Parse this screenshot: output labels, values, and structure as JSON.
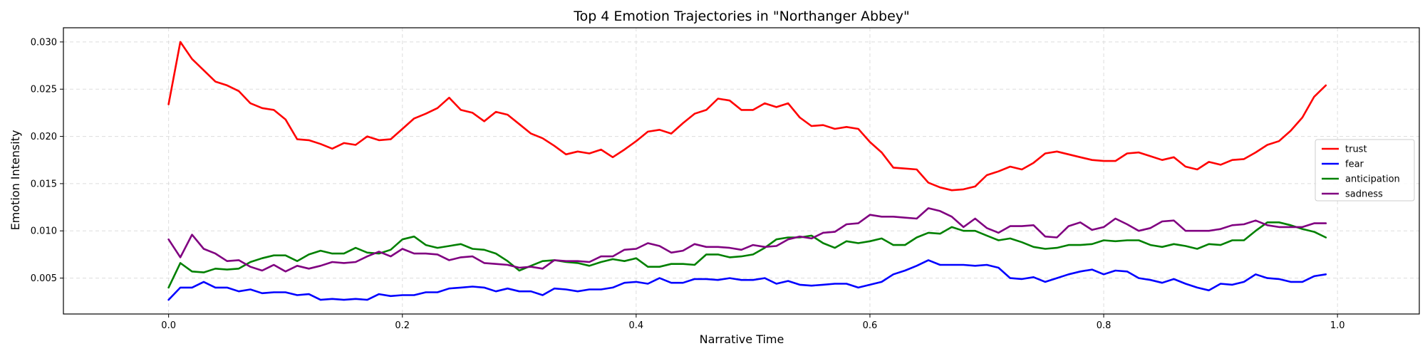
{
  "chart_data": {
    "type": "line",
    "title": "Top 4 Emotion Trajectories in \"Northanger Abbey\"",
    "xlabel": "Narrative Time",
    "ylabel": "Emotion Intensity",
    "xlim": [
      -0.09,
      1.07
    ],
    "ylim": [
      0.0012,
      0.0315
    ],
    "xticks": [
      0.0,
      0.2,
      0.4,
      0.6,
      0.8,
      1.0
    ],
    "xtick_labels": [
      "0.0",
      "0.2",
      "0.4",
      "0.6",
      "0.8",
      "1.0"
    ],
    "yticks": [
      0.005,
      0.01,
      0.015,
      0.02,
      0.025,
      0.03
    ],
    "ytick_labels": [
      "0.005",
      "0.010",
      "0.015",
      "0.020",
      "0.025",
      "0.030"
    ],
    "grid": true,
    "legend_position": "right",
    "x": [
      0.0,
      0.01,
      0.02,
      0.03,
      0.04,
      0.05,
      0.06,
      0.07,
      0.08,
      0.09,
      0.1,
      0.11,
      0.12,
      0.13,
      0.14,
      0.15,
      0.16,
      0.17,
      0.18,
      0.19,
      0.2,
      0.21,
      0.22,
      0.23,
      0.24,
      0.25,
      0.26,
      0.27,
      0.28,
      0.29,
      0.3,
      0.31,
      0.32,
      0.33,
      0.34,
      0.35,
      0.36,
      0.37,
      0.38,
      0.39,
      0.4,
      0.41,
      0.42,
      0.43,
      0.44,
      0.45,
      0.46,
      0.47,
      0.48,
      0.49,
      0.5,
      0.51,
      0.52,
      0.53,
      0.54,
      0.55,
      0.56,
      0.57,
      0.58,
      0.59,
      0.6,
      0.61,
      0.62,
      0.63,
      0.64,
      0.65,
      0.66,
      0.67,
      0.68,
      0.69,
      0.7,
      0.71,
      0.72,
      0.73,
      0.74,
      0.75,
      0.76,
      0.77,
      0.78,
      0.79,
      0.8,
      0.81,
      0.82,
      0.83,
      0.84,
      0.85,
      0.86,
      0.87,
      0.88,
      0.89,
      0.9,
      0.91,
      0.92,
      0.93,
      0.94,
      0.95,
      0.96,
      0.97,
      0.98,
      0.99
    ],
    "series": [
      {
        "name": "trust",
        "color": "#ff0000",
        "values": [
          0.0234,
          0.03,
          0.0282,
          0.027,
          0.0258,
          0.0254,
          0.0248,
          0.0235,
          0.023,
          0.0228,
          0.0218,
          0.0197,
          0.0196,
          0.0192,
          0.0187,
          0.0193,
          0.0191,
          0.02,
          0.0196,
          0.0197,
          0.0208,
          0.0219,
          0.0224,
          0.023,
          0.0241,
          0.0228,
          0.0225,
          0.0216,
          0.0226,
          0.0223,
          0.0213,
          0.0203,
          0.0198,
          0.019,
          0.0181,
          0.0184,
          0.0182,
          0.0186,
          0.0178,
          0.0186,
          0.0195,
          0.0205,
          0.0207,
          0.0203,
          0.0214,
          0.0224,
          0.0228,
          0.024,
          0.0238,
          0.0228,
          0.0228,
          0.0235,
          0.0231,
          0.0235,
          0.022,
          0.0211,
          0.0212,
          0.0208,
          0.021,
          0.0208,
          0.0194,
          0.0183,
          0.0167,
          0.0166,
          0.0165,
          0.0151,
          0.0146,
          0.0143,
          0.0144,
          0.0147,
          0.0159,
          0.0163,
          0.0168,
          0.0165,
          0.0172,
          0.0182,
          0.0184,
          0.0181,
          0.0178,
          0.0175,
          0.0174,
          0.0174,
          0.0182,
          0.0183,
          0.0179,
          0.0175,
          0.0178,
          0.0168,
          0.0165,
          0.0173,
          0.017,
          0.0175,
          0.0176,
          0.0183,
          0.0191,
          0.0195,
          0.0206,
          0.022,
          0.0242,
          0.0254
        ]
      },
      {
        "name": "fear",
        "color": "#0000ff",
        "values": [
          0.0027,
          0.004,
          0.004,
          0.0046,
          0.004,
          0.004,
          0.0036,
          0.0038,
          0.0034,
          0.0035,
          0.0035,
          0.0032,
          0.0033,
          0.0027,
          0.0028,
          0.0027,
          0.0028,
          0.0027,
          0.0033,
          0.0031,
          0.0032,
          0.0032,
          0.0035,
          0.0035,
          0.0039,
          0.004,
          0.0041,
          0.004,
          0.0036,
          0.0039,
          0.0036,
          0.0036,
          0.0032,
          0.0039,
          0.0038,
          0.0036,
          0.0038,
          0.0038,
          0.004,
          0.0045,
          0.0046,
          0.0044,
          0.005,
          0.0045,
          0.0045,
          0.0049,
          0.0049,
          0.0048,
          0.005,
          0.0048,
          0.0048,
          0.005,
          0.0044,
          0.0047,
          0.0043,
          0.0042,
          0.0043,
          0.0044,
          0.0044,
          0.004,
          0.0043,
          0.0046,
          0.0054,
          0.0058,
          0.0063,
          0.0069,
          0.0064,
          0.0064,
          0.0064,
          0.0063,
          0.0064,
          0.0061,
          0.005,
          0.0049,
          0.0051,
          0.0046,
          0.005,
          0.0054,
          0.0057,
          0.0059,
          0.0054,
          0.0058,
          0.0057,
          0.005,
          0.0048,
          0.0045,
          0.0049,
          0.0044,
          0.004,
          0.0037,
          0.0044,
          0.0043,
          0.0046,
          0.0054,
          0.005,
          0.0049,
          0.0046,
          0.0046,
          0.0052,
          0.0054
        ]
      },
      {
        "name": "anticipation",
        "color": "#008000",
        "values": [
          0.004,
          0.0066,
          0.0057,
          0.0056,
          0.006,
          0.0059,
          0.006,
          0.0067,
          0.0071,
          0.0074,
          0.0074,
          0.0068,
          0.0075,
          0.0079,
          0.0076,
          0.0076,
          0.0082,
          0.0077,
          0.0076,
          0.008,
          0.0091,
          0.0094,
          0.0085,
          0.0082,
          0.0084,
          0.0086,
          0.0081,
          0.008,
          0.0076,
          0.0068,
          0.0058,
          0.0063,
          0.0068,
          0.0069,
          0.0067,
          0.0066,
          0.0063,
          0.0067,
          0.007,
          0.0068,
          0.0071,
          0.0062,
          0.0062,
          0.0065,
          0.0065,
          0.0064,
          0.0075,
          0.0075,
          0.0072,
          0.0073,
          0.0075,
          0.0082,
          0.0091,
          0.0093,
          0.0093,
          0.0095,
          0.0087,
          0.0082,
          0.0089,
          0.0087,
          0.0089,
          0.0092,
          0.0085,
          0.0085,
          0.0093,
          0.0098,
          0.0097,
          0.0104,
          0.01,
          0.01,
          0.0095,
          0.009,
          0.0092,
          0.0088,
          0.0083,
          0.0081,
          0.0082,
          0.0085,
          0.0085,
          0.0086,
          0.009,
          0.0089,
          0.009,
          0.009,
          0.0085,
          0.0083,
          0.0086,
          0.0084,
          0.0081,
          0.0086,
          0.0085,
          0.009,
          0.009,
          0.01,
          0.0109,
          0.0109,
          0.0106,
          0.0102,
          0.0099,
          0.0093
        ]
      },
      {
        "name": "sadness",
        "color": "#800080",
        "values": [
          0.0091,
          0.0072,
          0.0096,
          0.0081,
          0.0076,
          0.0068,
          0.0069,
          0.0062,
          0.0058,
          0.0064,
          0.0057,
          0.0063,
          0.006,
          0.0063,
          0.0067,
          0.0066,
          0.0067,
          0.0073,
          0.0078,
          0.0073,
          0.0081,
          0.0076,
          0.0076,
          0.0075,
          0.0069,
          0.0072,
          0.0073,
          0.0066,
          0.0065,
          0.0064,
          0.0061,
          0.0062,
          0.006,
          0.0069,
          0.0068,
          0.0068,
          0.0067,
          0.0073,
          0.0073,
          0.008,
          0.0081,
          0.0087,
          0.0084,
          0.0077,
          0.0079,
          0.0086,
          0.0083,
          0.0083,
          0.0082,
          0.008,
          0.0085,
          0.0083,
          0.0084,
          0.0091,
          0.0094,
          0.0092,
          0.0098,
          0.0099,
          0.0107,
          0.0108,
          0.0117,
          0.0115,
          0.0115,
          0.0114,
          0.0113,
          0.0124,
          0.0121,
          0.0115,
          0.0104,
          0.0113,
          0.0103,
          0.0098,
          0.0105,
          0.0105,
          0.0106,
          0.0094,
          0.0093,
          0.0105,
          0.0109,
          0.0101,
          0.0104,
          0.0113,
          0.0107,
          0.01,
          0.0103,
          0.011,
          0.0111,
          0.01,
          0.01,
          0.01,
          0.0102,
          0.0106,
          0.0107,
          0.0111,
          0.0106,
          0.0104,
          0.0104,
          0.0104,
          0.0108,
          0.0108
        ]
      }
    ]
  }
}
